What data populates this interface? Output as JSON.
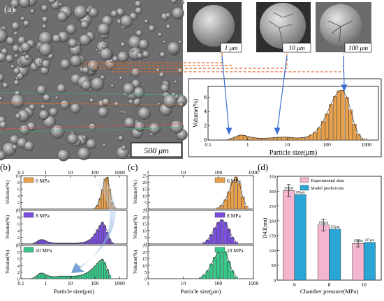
{
  "panel_labels": {
    "a": "(a)",
    "b": "(b)",
    "c": "(c)",
    "d": "(d)"
  },
  "sem": {
    "scale_main": "500 μm",
    "scale_inset1": "1 μm",
    "scale_inset2": "10 μm",
    "scale_inset3": "100 μm"
  },
  "colors": {
    "orange": "#e8a04a",
    "purple": "#7a4fe0",
    "green": "#36c98a",
    "pink": "#f4b6cf",
    "blue": "#29a6d6"
  },
  "chart_data": [
    {
      "id": "a",
      "type": "bar",
      "xscale": "log",
      "xlabel": "Particle size(μm)",
      "ylabel": "Volume(%)",
      "xlim": [
        0.1,
        2000
      ],
      "ylim": [
        0,
        7.5
      ],
      "xticks": [
        "0.1",
        "1",
        "10",
        "100",
        "1000"
      ],
      "yticks": [
        "0",
        "2",
        "4",
        "6"
      ],
      "x": [
        0.3,
        0.4,
        0.5,
        0.6,
        0.7,
        0.85,
        1,
        1.3,
        1.6,
        2,
        2.5,
        3.2,
        4,
        5,
        6.3,
        8,
        10,
        12.6,
        16,
        20,
        25,
        32,
        40,
        50,
        63,
        80,
        100,
        126,
        160,
        200,
        250,
        320,
        400,
        500,
        630,
        800
      ],
      "values": [
        0.05,
        0.25,
        0.45,
        0.62,
        0.7,
        0.62,
        0.5,
        0.38,
        0.3,
        0.25,
        0.25,
        0.28,
        0.3,
        0.35,
        0.4,
        0.42,
        0.4,
        0.35,
        0.3,
        0.3,
        0.35,
        0.45,
        0.7,
        1.1,
        1.7,
        2.6,
        3.7,
        5.0,
        6.1,
        6.9,
        7.0,
        6.0,
        4.2,
        2.2,
        0.8,
        0.2
      ],
      "color": "#e8a04a"
    },
    {
      "id": "b",
      "type": "bar",
      "xscale": "log",
      "xlabel": "Particle size(μm)",
      "ylabel": "Volume(%)",
      "xlim": [
        0.1,
        2000
      ],
      "xticks": [
        "0.1",
        "1",
        "10",
        "100",
        "1000"
      ],
      "series": [
        {
          "name": "6 MPa",
          "color": "#e8a04a",
          "ylim": [
            0,
            10
          ],
          "yticks": [
            "0",
            "2",
            "4",
            "6",
            "8",
            "10"
          ],
          "x": [
            100,
            126,
            160,
            200,
            250,
            320,
            400,
            500,
            630
          ],
          "values": [
            0.3,
            1.2,
            3.2,
            6.0,
            9.0,
            9.5,
            6.0,
            2.0,
            0.5
          ]
        },
        {
          "name": "8 MPa",
          "color": "#7a4fe0",
          "ylim": [
            0,
            10
          ],
          "yticks": [
            "0",
            "2",
            "4",
            "6",
            "8",
            "10"
          ],
          "x": [
            0.3,
            0.4,
            0.5,
            0.6,
            0.7,
            0.85,
            1,
            1.3,
            1.6,
            2,
            2.5,
            3.2,
            4,
            5,
            6.3,
            8,
            10,
            12.6,
            16,
            20,
            25,
            32,
            40,
            50,
            63,
            80,
            100,
            126,
            160,
            200,
            250,
            320,
            400,
            500
          ],
          "values": [
            0.1,
            0.5,
            0.9,
            1.2,
            1.3,
            1.2,
            0.9,
            0.6,
            0.4,
            0.3,
            0.2,
            0.2,
            0.2,
            0.2,
            0.2,
            0.2,
            0.2,
            0.2,
            0.2,
            0.2,
            0.3,
            0.4,
            0.6,
            0.9,
            1.3,
            2.0,
            3.0,
            4.2,
            5.5,
            6.5,
            5.5,
            3.5,
            1.5,
            0.4
          ]
        },
        {
          "name": "10 MPa",
          "color": "#36c98a",
          "ylim": [
            0,
            10
          ],
          "yticks": [
            "0",
            "2",
            "4",
            "6",
            "8",
            "10"
          ],
          "x": [
            0.3,
            0.4,
            0.5,
            0.6,
            0.7,
            0.85,
            1,
            1.3,
            1.6,
            2,
            2.5,
            3.2,
            4,
            5,
            6.3,
            8,
            10,
            12.6,
            16,
            20,
            25,
            32,
            40,
            50,
            63,
            80,
            100,
            126,
            160,
            200,
            250,
            320,
            400
          ],
          "values": [
            0.2,
            0.7,
            1.2,
            1.6,
            1.7,
            1.5,
            1.2,
            0.9,
            0.7,
            0.6,
            0.6,
            0.7,
            0.8,
            0.8,
            0.8,
            0.8,
            0.8,
            0.8,
            0.8,
            0.9,
            1.0,
            1.2,
            1.5,
            1.9,
            2.4,
            3.0,
            3.8,
            4.6,
            5.4,
            5.8,
            4.8,
            2.8,
            1.0
          ]
        }
      ]
    },
    {
      "id": "c",
      "type": "bar",
      "xscale": "log",
      "xlabel": "Particle size(μm)",
      "ylabel": "Volume(%)",
      "xlim": [
        1,
        1000
      ],
      "xticks": [
        "1",
        "10",
        "100",
        "1000"
      ],
      "series": [
        {
          "name": "6 MPa",
          "color": "#e8a04a",
          "ylim": [
            0,
            25
          ],
          "yticks": [
            "0",
            "5",
            "10",
            "15",
            "20",
            "25"
          ],
          "x": [
            100,
            126,
            160,
            200,
            250,
            320,
            400,
            500,
            630
          ],
          "values": [
            1,
            3,
            7,
            13,
            20,
            24,
            19,
            9,
            2
          ]
        },
        {
          "name": "8 MPa",
          "color": "#7a4fe0",
          "ylim": [
            0,
            25
          ],
          "yticks": [
            "0",
            "5",
            "10",
            "15",
            "20",
            "25"
          ],
          "x": [
            40,
            50,
            63,
            80,
            100,
            126,
            160,
            200,
            250,
            320
          ],
          "values": [
            1,
            3,
            7,
            12,
            16,
            18,
            16,
            11,
            5,
            1.5
          ]
        },
        {
          "name": "10 MPa",
          "color": "#36c98a",
          "ylim": [
            0,
            25
          ],
          "yticks": [
            "0",
            "5",
            "10",
            "15",
            "20",
            "25"
          ],
          "x": [
            32,
            40,
            50,
            63,
            80,
            100,
            126,
            160,
            200,
            250,
            320
          ],
          "values": [
            1,
            3,
            6,
            11,
            16,
            20,
            22,
            20,
            13,
            6,
            1.5
          ]
        }
      ]
    },
    {
      "id": "d",
      "type": "bar",
      "xlabel": "Chamber pressure(MPa)",
      "ylabel": "D43(nm)",
      "categories": [
        "6",
        "8",
        "10"
      ],
      "ylim": [
        0,
        350
      ],
      "yticks": [
        "0",
        "50",
        "100",
        "150",
        "200",
        "250",
        "300",
        "350"
      ],
      "series": [
        {
          "name": "Experimental data",
          "values": [
            302,
            186,
            124
          ],
          "errors": [
            20,
            20,
            12
          ],
          "color": "#f4b6cf",
          "labels": [
            "302μm",
            "186μm",
            "124μm"
          ]
        },
        {
          "name": "Model predictions",
          "values": [
            288,
            172,
            127
          ],
          "color": "#29a6d6",
          "labels": [
            "288μm",
            "172μm",
            "127μm"
          ]
        }
      ]
    }
  ]
}
